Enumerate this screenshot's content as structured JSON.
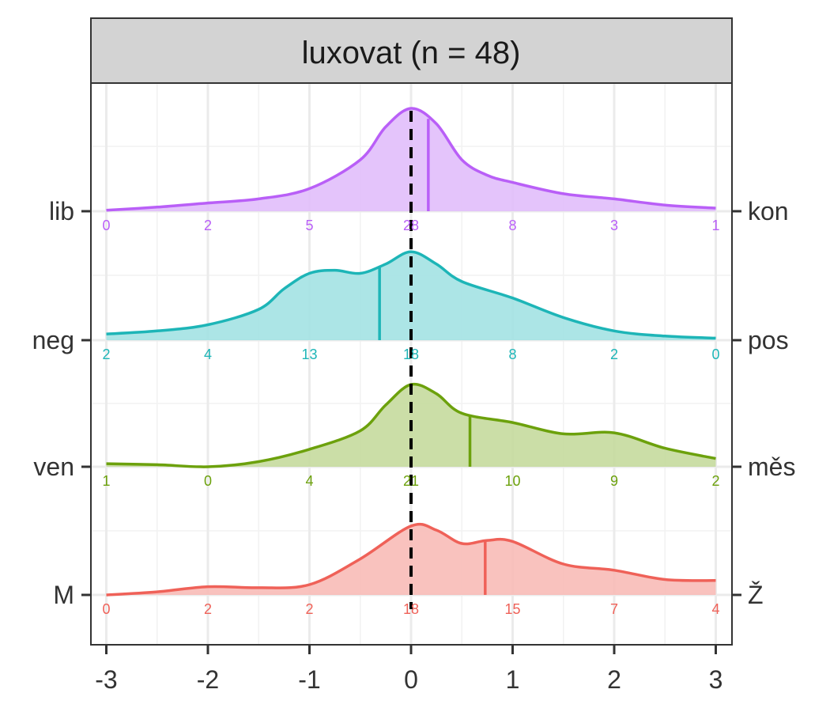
{
  "chart_data": {
    "type": "ridgeline-density",
    "title": "luxovat (n = 48)",
    "xlim": [
      -3,
      3
    ],
    "x_ticks": [
      "-3",
      "-2",
      "-1",
      "0",
      "1",
      "2",
      "3"
    ],
    "count_positions": [
      -3,
      -2,
      -1,
      0,
      1,
      2,
      3
    ],
    "reference_line": 0,
    "grid": true,
    "series": [
      {
        "left_label": "lib",
        "right_label": "kon",
        "color": "#B95FF7",
        "fill": "#E1BEFB",
        "counts": [
          0,
          2,
          5,
          28,
          8,
          3,
          1
        ],
        "mean": 0.17,
        "density": [
          [
            -3,
            0.01
          ],
          [
            -2.5,
            0.04
          ],
          [
            -2,
            0.08
          ],
          [
            -1.5,
            0.12
          ],
          [
            -1,
            0.22
          ],
          [
            -0.5,
            0.5
          ],
          [
            -0.25,
            0.82
          ],
          [
            0,
            1.0
          ],
          [
            0.25,
            0.85
          ],
          [
            0.5,
            0.5
          ],
          [
            0.75,
            0.35
          ],
          [
            1,
            0.28
          ],
          [
            1.5,
            0.17
          ],
          [
            2,
            0.12
          ],
          [
            2.5,
            0.06
          ],
          [
            3,
            0.03
          ]
        ]
      },
      {
        "left_label": "neg",
        "right_label": "pos",
        "color": "#1DB5B7",
        "fill": "#A3E2E3",
        "counts": [
          2,
          4,
          13,
          18,
          8,
          2,
          0
        ],
        "mean": -0.31,
        "density": [
          [
            -3,
            0.06
          ],
          [
            -2.5,
            0.09
          ],
          [
            -2,
            0.15
          ],
          [
            -1.5,
            0.3
          ],
          [
            -1.25,
            0.5
          ],
          [
            -1,
            0.65
          ],
          [
            -0.75,
            0.68
          ],
          [
            -0.5,
            0.65
          ],
          [
            -0.25,
            0.74
          ],
          [
            0,
            0.86
          ],
          [
            0.25,
            0.74
          ],
          [
            0.5,
            0.57
          ],
          [
            1,
            0.41
          ],
          [
            1.5,
            0.22
          ],
          [
            2,
            0.09
          ],
          [
            2.5,
            0.04
          ],
          [
            3,
            0.02
          ]
        ]
      },
      {
        "left_label": "ven",
        "right_label": "měs",
        "color": "#6CA10C",
        "fill": "#C5DA9D",
        "counts": [
          1,
          0,
          4,
          21,
          10,
          9,
          2
        ],
        "mean": 0.58,
        "density": [
          [
            -3,
            0.03
          ],
          [
            -2.5,
            0.02
          ],
          [
            -2,
            0.0
          ],
          [
            -1.5,
            0.05
          ],
          [
            -1,
            0.17
          ],
          [
            -0.5,
            0.35
          ],
          [
            -0.25,
            0.6
          ],
          [
            0,
            0.8
          ],
          [
            0.25,
            0.71
          ],
          [
            0.5,
            0.52
          ],
          [
            1,
            0.43
          ],
          [
            1.5,
            0.32
          ],
          [
            2,
            0.33
          ],
          [
            2.5,
            0.18
          ],
          [
            3,
            0.08
          ]
        ]
      },
      {
        "left_label": "M",
        "right_label": "Ž",
        "color": "#EF6158",
        "fill": "#F8BBB7",
        "counts": [
          0,
          2,
          2,
          18,
          15,
          7,
          4
        ],
        "mean": 0.73,
        "density": [
          [
            -3,
            0.0
          ],
          [
            -2.5,
            0.03
          ],
          [
            -2,
            0.08
          ],
          [
            -1.5,
            0.07
          ],
          [
            -1,
            0.1
          ],
          [
            -0.5,
            0.35
          ],
          [
            0,
            0.67
          ],
          [
            0.25,
            0.63
          ],
          [
            0.5,
            0.5
          ],
          [
            0.75,
            0.53
          ],
          [
            1,
            0.52
          ],
          [
            1.5,
            0.3
          ],
          [
            2,
            0.24
          ],
          [
            2.5,
            0.15
          ],
          [
            3,
            0.14
          ]
        ]
      }
    ]
  }
}
